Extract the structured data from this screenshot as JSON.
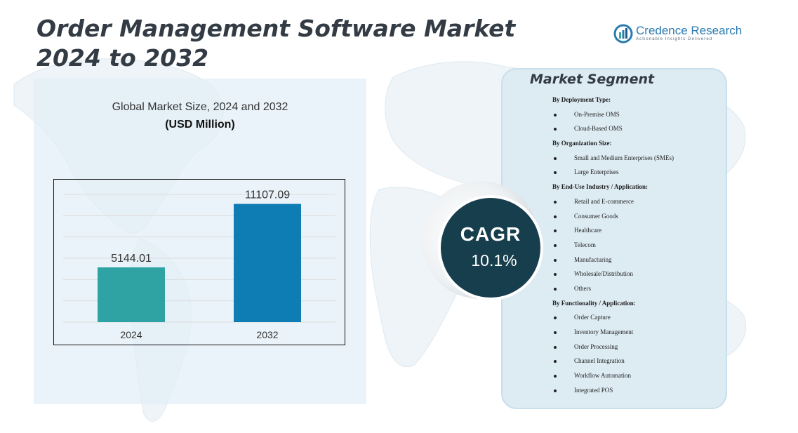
{
  "title": {
    "line1": "Order Management Software Market",
    "line2": "2024 to 2032"
  },
  "brand": {
    "name": "Credence Research",
    "tagline": "Actionable Insights Delivered",
    "color": "#2a7ab0"
  },
  "chart_data": {
    "type": "bar",
    "title": "Global Market Size,  2024 and 2032",
    "subtitle": "(USD Million)",
    "categories": [
      "2024",
      "2032"
    ],
    "values": [
      5144.01,
      11107.09
    ],
    "value_labels": [
      "5144.01",
      "11107.09"
    ],
    "bar_colors": [
      "#2fa3a3",
      "#0e7db4"
    ],
    "ylim": [
      0,
      12000
    ],
    "grid": true,
    "legend": "none"
  },
  "cagr": {
    "label": "CAGR",
    "value": "10.1%"
  },
  "segments": {
    "title": "Market Segment",
    "groups": [
      {
        "heading": "By Deployment Type:",
        "items": [
          "On-Premise OMS",
          "Cloud-Based OMS"
        ]
      },
      {
        "heading": "By Organization Size:",
        "items": [
          "Small and Medium Enterprises (SMEs)",
          "Large Enterprises"
        ]
      },
      {
        "heading": "By End-Use Industry / Application:",
        "items": [
          "Retail and E-commerce",
          "Consumer Goods",
          "Healthcare",
          "Telecom",
          "Manufacturing",
          "Wholesale/Distribution",
          "Others"
        ]
      },
      {
        "heading": "By Functionality / Application:",
        "items": [
          "Order Capture",
          "Inventory Management",
          "Order Processing",
          "Channel Integration",
          "Workflow Automation",
          "Integrated POS"
        ]
      }
    ]
  }
}
